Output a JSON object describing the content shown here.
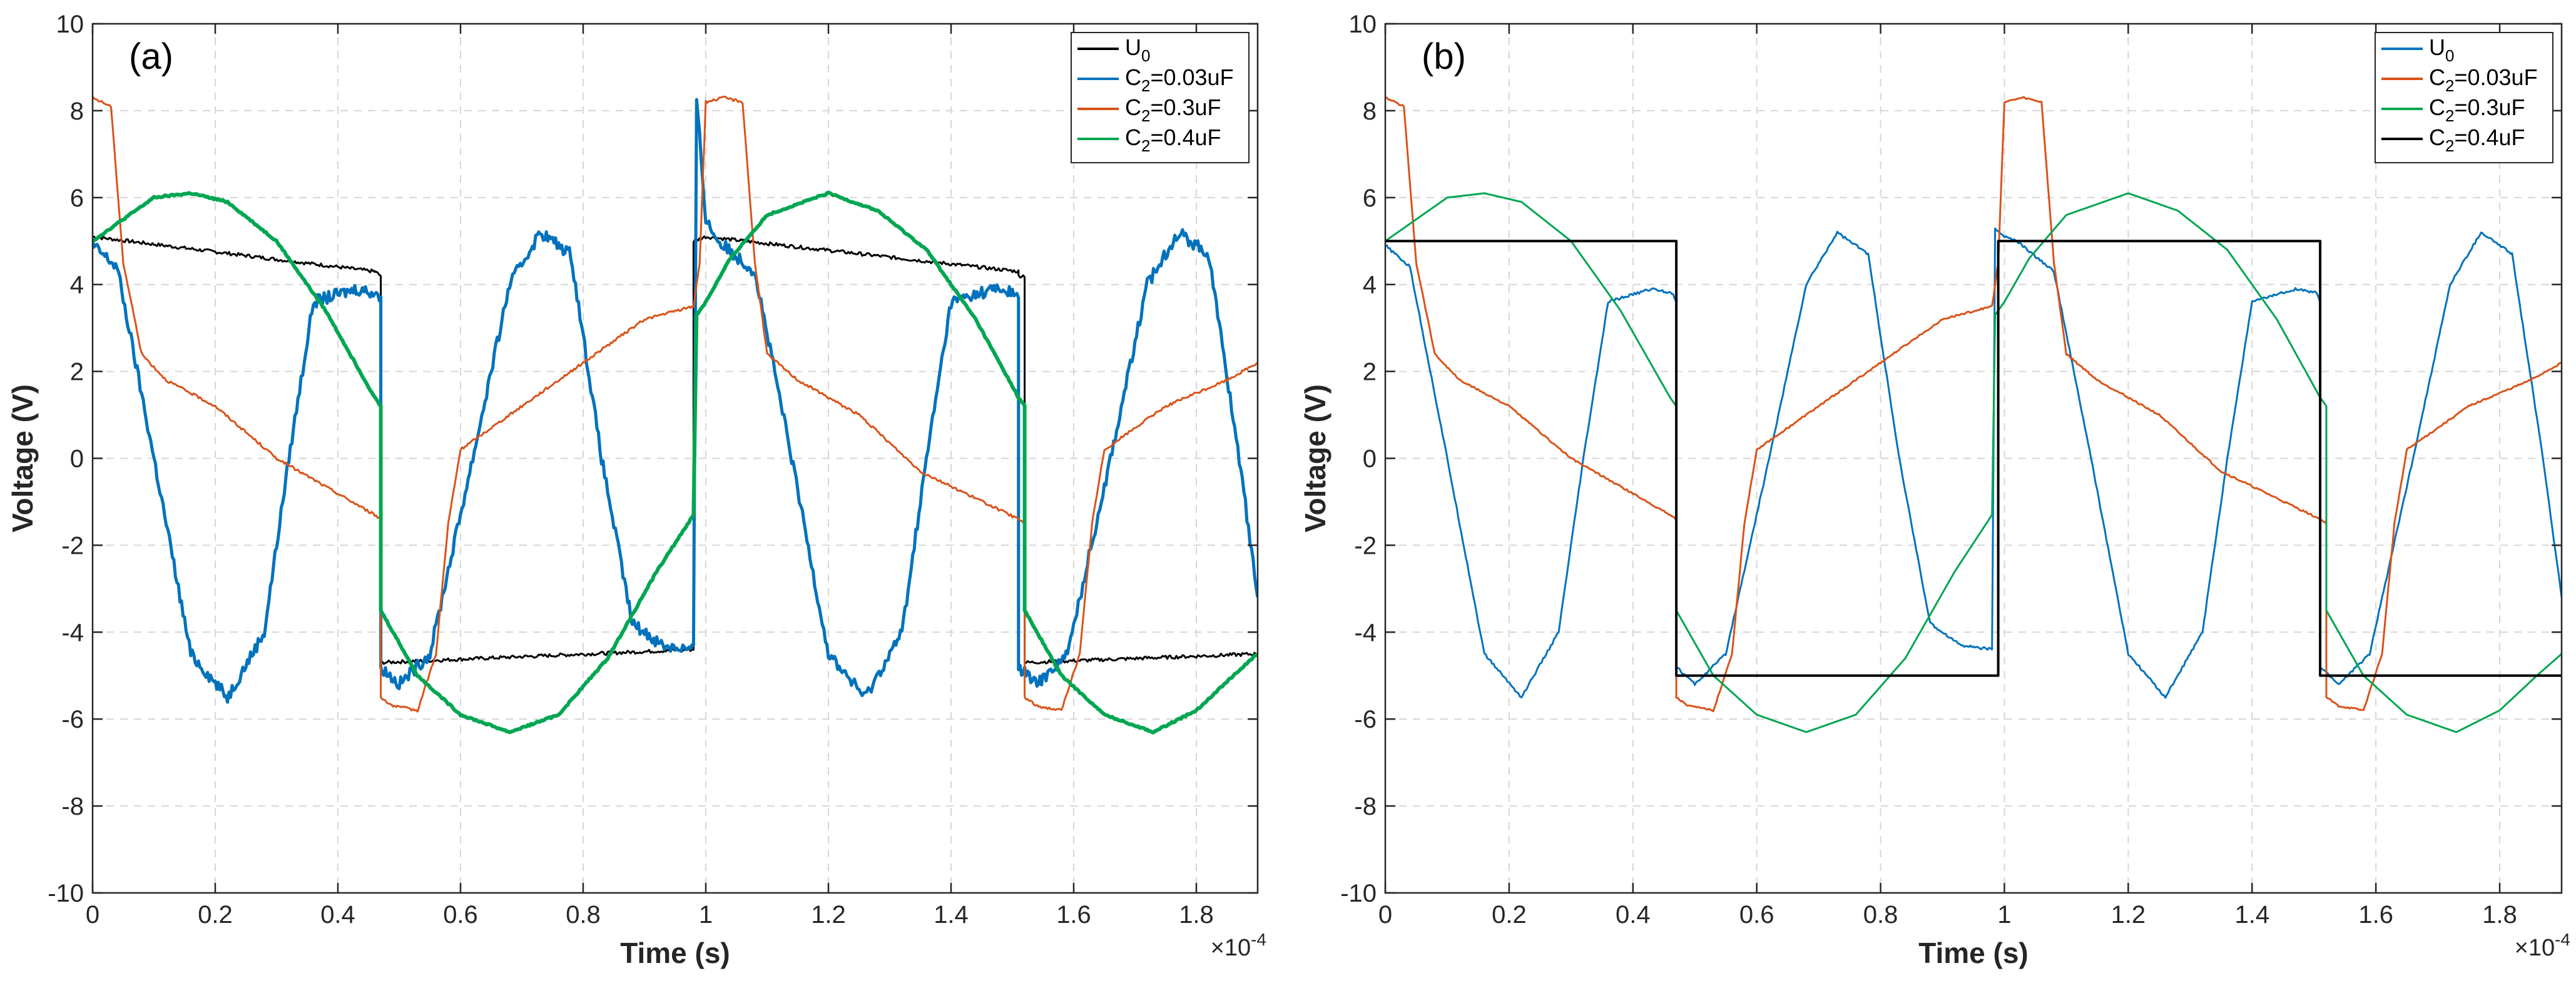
{
  "chart_data": [
    {
      "type": "line",
      "panel_label": "(a)",
      "xlabel": "Time (s)",
      "ylabel": "Voltage (V)",
      "x_exponent": "×10",
      "x_exponent_power": "-4",
      "xlim": [
        0,
        1.9
      ],
      "ylim": [
        -10,
        10
      ],
      "x_unit_scale": 0.0001,
      "xticks": [
        0,
        0.2,
        0.4,
        0.6,
        0.8,
        1,
        1.2,
        1.4,
        1.6,
        1.8
      ],
      "xtick_labels": [
        "0",
        "0.2",
        "0.4",
        "0.6",
        "0.8",
        "1",
        "1.2",
        "1.4",
        "1.6",
        "1.8"
      ],
      "yticks": [
        -10,
        -8,
        -6,
        -4,
        -2,
        0,
        2,
        4,
        6,
        8,
        10
      ],
      "ytick_labels": [
        "-10",
        "-8",
        "-6",
        "-4",
        "-2",
        "0",
        "2",
        "4",
        "6",
        "8",
        "10"
      ],
      "grid": true,
      "legend_position": "top-right",
      "series": [
        {
          "name": "U_0",
          "label_main": "U",
          "label_sub": "0",
          "label_rest": "",
          "color": "#000000",
          "width": 3,
          "noise": 0.04,
          "x": [
            0,
            0.46,
            0.46,
            0.47,
            0.47,
            0.98,
            0.98,
            1.0,
            1.51,
            1.51,
            1.52,
            1.52,
            1.9
          ],
          "y": [
            5.1,
            4.3,
            4.3,
            4.2,
            -4.7,
            -4.4,
            5.0,
            5.1,
            4.3,
            4.2,
            4.2,
            -4.7,
            -4.5
          ]
        },
        {
          "name": "C_2=0.03uF",
          "label_main": "C",
          "label_sub": "2",
          "label_rest": "=0.03uF",
          "color": "#0072BD",
          "width": 5,
          "noise": 0.14,
          "x": [
            0,
            0.04,
            0.1,
            0.16,
            0.22,
            0.28,
            0.32,
            0.36,
            0.43,
            0.465,
            0.47,
            0.47,
            0.5,
            0.55,
            0.62,
            0.68,
            0.73,
            0.78,
            0.83,
            0.88,
            0.93,
            0.98,
            0.985,
            1.0,
            1.02,
            1.08,
            1.14,
            1.2,
            1.26,
            1.32,
            1.36,
            1.4,
            1.47,
            1.505,
            1.51,
            1.51,
            1.54,
            1.59,
            1.66,
            1.72,
            1.77,
            1.82,
            1.87,
            1.9
          ],
          "y": [
            4.9,
            4.4,
            0,
            -4.5,
            -5.5,
            -4,
            0,
            3.6,
            3.9,
            3.8,
            3.6,
            -4.8,
            -5.2,
            -4.5,
            0,
            4,
            5.2,
            4.7,
            0,
            -3.8,
            -4.3,
            -4.4,
            8.3,
            5.5,
            5,
            4.3,
            0,
            -4.5,
            -5.5,
            -4,
            0,
            3.6,
            3.9,
            3.8,
            3.6,
            -4.8,
            -5.2,
            -4.5,
            0,
            4,
            5.2,
            4.7,
            0,
            -3.2
          ]
        },
        {
          "name": "C_2=0.3uF",
          "label_main": "C",
          "label_sub": "2",
          "label_rest": "=0.3uF",
          "color": "#D95319",
          "width": 3,
          "noise": 0.03,
          "x": [
            0,
            0.03,
            0.05,
            0.08,
            0.12,
            0.2,
            0.3,
            0.46,
            0.47,
            0.47,
            0.49,
            0.53,
            0.56,
            0.58,
            0.6,
            0.7,
            0.8,
            0.9,
            0.98,
            0.99,
            1.0,
            1.03,
            1.06,
            1.08,
            1.1,
            1.15,
            1.25,
            1.35,
            1.51,
            1.52,
            1.52,
            1.54,
            1.58,
            1.61,
            1.63,
            1.65,
            1.75,
            1.85,
            1.9
          ],
          "y": [
            8.3,
            8.1,
            4.5,
            2.4,
            1.8,
            1.2,
            0,
            -1.3,
            -1.4,
            -5.5,
            -5.7,
            -5.8,
            -4.5,
            -1.5,
            0.2,
            1.2,
            2.2,
            3.2,
            3.5,
            4.5,
            8.2,
            8.3,
            8.2,
            4.5,
            2.4,
            1.8,
            1,
            -0.3,
            -1.4,
            -1.5,
            -5.5,
            -5.7,
            -5.8,
            -4.5,
            -1.5,
            0.2,
            1.2,
            1.8,
            2.2
          ]
        },
        {
          "name": "C_2=0.4uF",
          "label_main": "C",
          "label_sub": "2",
          "label_rest": "=0.4uF",
          "color": "#00A651",
          "width": 6,
          "noise": 0.02,
          "x": [
            0,
            0.05,
            0.1,
            0.16,
            0.22,
            0.3,
            0.38,
            0.46,
            0.47,
            0.47,
            0.53,
            0.6,
            0.68,
            0.76,
            0.84,
            0.92,
            0.98,
            0.985,
            1.0,
            1.04,
            1.1,
            1.2,
            1.28,
            1.36,
            1.44,
            1.51,
            1.52,
            1.52,
            1.58,
            1.65,
            1.73,
            1.8,
            1.86,
            1.9
          ],
          "y": [
            5,
            5.5,
            6,
            6.1,
            5.9,
            5,
            3.4,
            1.4,
            1.2,
            -3.5,
            -5,
            -5.9,
            -6.3,
            -5.9,
            -4.6,
            -2.6,
            -1.3,
            3.3,
            3.6,
            4.6,
            5.6,
            6.1,
            5.7,
            4.8,
            3.2,
            1.4,
            1.2,
            -3.5,
            -5,
            -5.9,
            -6.3,
            -5.8,
            -5,
            -4.5
          ]
        }
      ]
    },
    {
      "type": "line",
      "panel_label": "(b)",
      "xlabel": "Time (s)",
      "ylabel": "Voltage (V)",
      "x_exponent": "×10",
      "x_exponent_power": "-4",
      "xlim": [
        0,
        1.9
      ],
      "ylim": [
        -10,
        10
      ],
      "x_unit_scale": 0.0001,
      "xticks": [
        0,
        0.2,
        0.4,
        0.6,
        0.8,
        1,
        1.2,
        1.4,
        1.6,
        1.8
      ],
      "xtick_labels": [
        "0",
        "0.2",
        "0.4",
        "0.6",
        "0.8",
        "1",
        "1.2",
        "1.4",
        "1.6",
        "1.8"
      ],
      "yticks": [
        -10,
        -8,
        -6,
        -4,
        -2,
        0,
        2,
        4,
        6,
        8,
        10
      ],
      "ytick_labels": [
        "-10",
        "-8",
        "-6",
        "-4",
        "-2",
        "0",
        "2",
        "4",
        "6",
        "8",
        "10"
      ],
      "grid": true,
      "legend_position": "top-right",
      "series": [
        {
          "name": "U_0",
          "label_main": "U",
          "label_sub": "0",
          "label_rest": "",
          "color": "#0072BD",
          "width": 3,
          "noise": 0.03,
          "x": [
            0,
            0.04,
            0.1,
            0.16,
            0.22,
            0.28,
            0.32,
            0.36,
            0.43,
            0.465,
            0.47,
            0.47,
            0.5,
            0.55,
            0.62,
            0.68,
            0.73,
            0.78,
            0.83,
            0.88,
            0.93,
            0.98,
            0.985,
            1.0,
            1.02,
            1.08,
            1.14,
            1.2,
            1.26,
            1.32,
            1.36,
            1.4,
            1.47,
            1.505,
            1.51,
            1.51,
            1.54,
            1.59,
            1.66,
            1.72,
            1.77,
            1.82,
            1.87,
            1.9
          ],
          "y": [
            4.9,
            4.4,
            0,
            -4.5,
            -5.5,
            -4,
            0,
            3.6,
            3.9,
            3.8,
            3.6,
            -4.8,
            -5.2,
            -4.5,
            0,
            4,
            5.2,
            4.7,
            0,
            -3.8,
            -4.3,
            -4.4,
            5.3,
            5.1,
            5,
            4.3,
            0,
            -4.5,
            -5.5,
            -4,
            0,
            3.6,
            3.9,
            3.8,
            3.6,
            -4.8,
            -5.2,
            -4.5,
            0,
            4,
            5.2,
            4.7,
            0,
            -3.2
          ]
        },
        {
          "name": "C_2=0.03uF",
          "label_main": "C",
          "label_sub": "2",
          "label_rest": "=0.03uF",
          "color": "#D95319",
          "width": 3,
          "noise": 0.02,
          "x": [
            0,
            0.03,
            0.05,
            0.08,
            0.12,
            0.2,
            0.3,
            0.46,
            0.47,
            0.47,
            0.49,
            0.53,
            0.56,
            0.58,
            0.6,
            0.7,
            0.8,
            0.9,
            0.98,
            0.99,
            1.0,
            1.03,
            1.06,
            1.08,
            1.1,
            1.15,
            1.25,
            1.35,
            1.51,
            1.52,
            1.52,
            1.54,
            1.58,
            1.61,
            1.63,
            1.65,
            1.75,
            1.85,
            1.9
          ],
          "y": [
            8.3,
            8.1,
            4.5,
            2.4,
            1.8,
            1.2,
            0,
            -1.3,
            -1.4,
            -5.5,
            -5.7,
            -5.8,
            -4.5,
            -1.5,
            0.2,
            1.2,
            2.2,
            3.2,
            3.5,
            4.5,
            8.2,
            8.3,
            8.2,
            4.5,
            2.4,
            1.8,
            1,
            -0.3,
            -1.4,
            -1.5,
            -5.5,
            -5.7,
            -5.8,
            -4.5,
            -1.5,
            0.2,
            1.2,
            1.8,
            2.2
          ]
        },
        {
          "name": "C_2=0.3uF",
          "label_main": "C",
          "label_sub": "2",
          "label_rest": "=0.3uF",
          "color": "#00A651",
          "width": 3,
          "noise": 0.0,
          "x": [
            0,
            0.05,
            0.1,
            0.16,
            0.22,
            0.3,
            0.38,
            0.46,
            0.47,
            0.47,
            0.53,
            0.6,
            0.68,
            0.76,
            0.84,
            0.92,
            0.98,
            0.985,
            1.0,
            1.04,
            1.1,
            1.2,
            1.28,
            1.36,
            1.44,
            1.51,
            1.52,
            1.52,
            1.58,
            1.65,
            1.73,
            1.8,
            1.86,
            1.9
          ],
          "y": [
            5,
            5.5,
            6,
            6.1,
            5.9,
            5,
            3.4,
            1.4,
            1.2,
            -3.5,
            -5,
            -5.9,
            -6.3,
            -5.9,
            -4.6,
            -2.6,
            -1.3,
            3.3,
            3.6,
            4.6,
            5.6,
            6.1,
            5.7,
            4.8,
            3.2,
            1.4,
            1.2,
            -3.5,
            -5,
            -5.9,
            -6.3,
            -5.8,
            -5,
            -4.5
          ]
        },
        {
          "name": "C_2=0.4uF",
          "label_main": "C",
          "label_sub": "2",
          "label_rest": "=0.4uF",
          "color": "#000000",
          "width": 4,
          "noise": 0.0,
          "x": [
            0,
            0.47,
            0.47,
            0.99,
            0.99,
            1.51,
            1.51,
            1.9
          ],
          "y": [
            5,
            5,
            -5,
            -5,
            5,
            5,
            -5,
            -5
          ]
        }
      ]
    }
  ]
}
